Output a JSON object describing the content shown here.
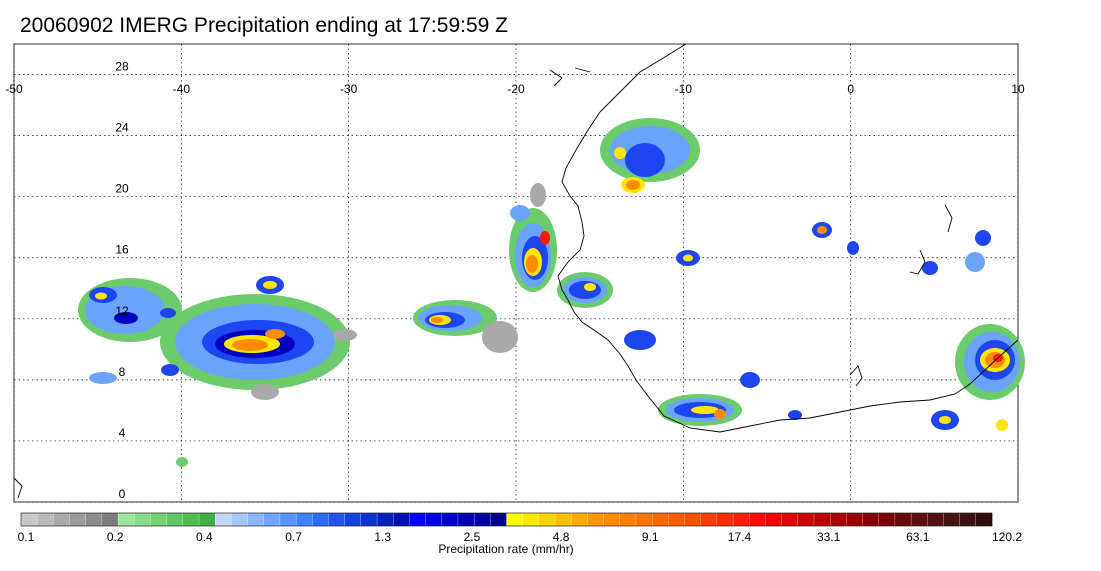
{
  "title": "20060902 IMERG Precipitation ending at 17:59:59 Z",
  "map": {
    "lon_range": [
      -50,
      10
    ],
    "lat_range": [
      0,
      30
    ],
    "lon_ticks": [
      "-50",
      "-40",
      "-30",
      "-20",
      "-10",
      "0",
      "10"
    ],
    "lat_ticks": [
      "28",
      "24",
      "20",
      "16",
      "12",
      "8",
      "4",
      "0"
    ],
    "grid": true
  },
  "colorbar": {
    "label": "Precipitation rate (mm/hr)",
    "tick_labels": [
      "0.1",
      "0.2",
      "0.4",
      "0.7",
      "1.3",
      "2.5",
      "4.8",
      "9.1",
      "17.4",
      "33.1",
      "63.1",
      "120.2"
    ],
    "colors": [
      "#c8c8c8",
      "#b9b9b9",
      "#aaaaaa",
      "#9b9b9b",
      "#8c8c8c",
      "#7d7d7d",
      "#9be79b",
      "#87dc87",
      "#74d174",
      "#62c662",
      "#50bb50",
      "#40b040",
      "#c4d8ff",
      "#a6c7ff",
      "#8ab6ff",
      "#6fa5ff",
      "#5694ff",
      "#3d83ff",
      "#2b6bff",
      "#1f55f0",
      "#1444e0",
      "#0a33d0",
      "#0022c0",
      "#0011b0",
      "#0000ff",
      "#0000e6",
      "#0000cc",
      "#0000b3",
      "#00009f",
      "#00008c",
      "#ffff00",
      "#ffe800",
      "#ffd400",
      "#ffc000",
      "#ffab00",
      "#ff9800",
      "#ff8c00",
      "#ff8000",
      "#ff7400",
      "#ff6800",
      "#ff5c00",
      "#ff5000",
      "#ff3c00",
      "#ff2c00",
      "#ff1c00",
      "#ff0c00",
      "#f00000",
      "#e00000",
      "#cc0000",
      "#bb0000",
      "#aa0000",
      "#990000",
      "#880000",
      "#770000",
      "#6a0a0a",
      "#5e0e0e",
      "#521010",
      "#461212",
      "#3c1010",
      "#320c0c"
    ]
  },
  "precip_colors": {
    "gray": "#a9a9a9",
    "green": "#6ccc6c",
    "light_blue": "#6aa4ff",
    "blue": "#1d45f2",
    "dark_blue": "#0000c0",
    "yellow": "#ffe600",
    "orange": "#ff8c00",
    "red": "#ff1a00"
  }
}
